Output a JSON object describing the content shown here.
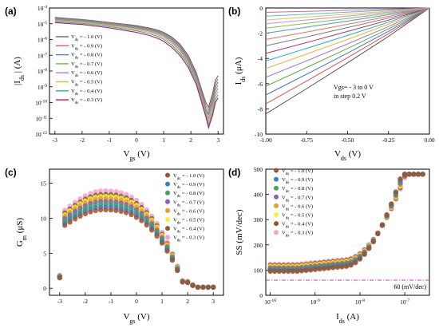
{
  "colors": [
    "#666666",
    "#e06666",
    "#4a86d8",
    "#7cb342",
    "#b07cc9",
    "#e8b230",
    "#2ab0c0",
    "#c2185b"
  ],
  "scatter_colors": [
    "#a0522d",
    "#3a7bd5",
    "#3aa856",
    "#8e5bb5",
    "#e8a020",
    "#f2f230",
    "#8b5a2b",
    "#f4a0d0"
  ],
  "chart_data": [
    {
      "id": "a",
      "panel_label": "(a)",
      "type": "line",
      "xlabel_main": "V",
      "xlabel_sub": "gs",
      "xlabel_unit": "(V)",
      "ylabel_main": "|I",
      "ylabel_sub": "ds",
      "ylabel_unit": "| (A)",
      "xlim": [
        -3.2,
        3.2
      ],
      "ylim_log10": [
        -12,
        -4
      ],
      "y_scale": "log",
      "xticks": [
        -3,
        -2,
        -1,
        0,
        1,
        2,
        3
      ],
      "yticks_exp": [
        -12,
        -11,
        -10,
        -9,
        -8,
        -7,
        -6,
        -5,
        -4
      ],
      "ytick_base": "10",
      "x": [
        -3.0,
        -2.5,
        -2.0,
        -1.5,
        -1.0,
        -0.5,
        0.0,
        0.5,
        0.8,
        1.0,
        1.3,
        1.6,
        1.9,
        2.2,
        2.4,
        2.55,
        2.65,
        2.8,
        2.9,
        3.0
      ],
      "series": [
        {
          "name": "V",
          "sub": "ds",
          "suffix": " = - 1.0 (V)",
          "log10_values": [
            -4.6,
            -4.67,
            -4.73,
            -4.82,
            -4.92,
            -5.02,
            -5.12,
            -5.28,
            -5.42,
            -5.55,
            -5.85,
            -6.3,
            -7.0,
            -8.1,
            -9.2,
            -10.0,
            -10.3,
            -9.4,
            -8.6,
            -8.3
          ]
        },
        {
          "name": "V",
          "sub": "ds",
          "suffix": " = - 0.9 (V)",
          "log10_values": [
            -4.63,
            -4.7,
            -4.76,
            -4.85,
            -4.95,
            -5.05,
            -5.16,
            -5.32,
            -5.47,
            -5.6,
            -5.92,
            -6.38,
            -7.1,
            -8.2,
            -9.35,
            -10.2,
            -10.5,
            -9.6,
            -8.8,
            -8.5
          ]
        },
        {
          "name": "V",
          "sub": "ds",
          "suffix": " = - 0.8 (V)",
          "log10_values": [
            -4.66,
            -4.73,
            -4.79,
            -4.88,
            -4.98,
            -5.09,
            -5.2,
            -5.37,
            -5.52,
            -5.66,
            -5.99,
            -6.46,
            -7.2,
            -8.3,
            -9.5,
            -10.4,
            -10.7,
            -9.8,
            -9.0,
            -8.7
          ]
        },
        {
          "name": "V",
          "sub": "ds",
          "suffix": " = - 0.7 (V)",
          "log10_values": [
            -4.7,
            -4.77,
            -4.83,
            -4.92,
            -5.02,
            -5.13,
            -5.25,
            -5.42,
            -5.58,
            -5.73,
            -6.07,
            -6.55,
            -7.3,
            -8.4,
            -9.6,
            -10.5,
            -10.8,
            -10.0,
            -9.2,
            -8.9
          ]
        },
        {
          "name": "V",
          "sub": "ds",
          "suffix": " = - 0.6 (V)",
          "log10_values": [
            -4.74,
            -4.81,
            -4.87,
            -4.96,
            -5.07,
            -5.18,
            -5.3,
            -5.48,
            -5.65,
            -5.8,
            -6.15,
            -6.65,
            -7.4,
            -8.5,
            -9.7,
            -10.6,
            -11.0,
            -10.2,
            -9.4,
            -9.1
          ]
        },
        {
          "name": "V",
          "sub": "ds",
          "suffix": " = - 0.5 (V)",
          "log10_values": [
            -4.79,
            -4.86,
            -4.92,
            -5.01,
            -5.12,
            -5.24,
            -5.37,
            -5.55,
            -5.73,
            -5.89,
            -6.25,
            -6.76,
            -7.5,
            -8.6,
            -9.8,
            -10.7,
            -11.2,
            -10.4,
            -9.6,
            -9.3
          ]
        },
        {
          "name": "V",
          "sub": "ds",
          "suffix": " = - 0.4 (V)",
          "log10_values": [
            -4.85,
            -4.92,
            -4.98,
            -5.07,
            -5.18,
            -5.31,
            -5.45,
            -5.64,
            -5.82,
            -5.99,
            -6.36,
            -6.88,
            -7.6,
            -8.7,
            -9.9,
            -10.8,
            -11.4,
            -10.6,
            -9.8,
            -9.5
          ]
        },
        {
          "name": "V",
          "sub": "ds",
          "suffix": " = - 0.3 (V)",
          "log10_values": [
            -4.92,
            -4.99,
            -5.05,
            -5.15,
            -5.26,
            -5.4,
            -5.55,
            -5.75,
            -5.94,
            -6.12,
            -6.5,
            -7.02,
            -7.75,
            -8.85,
            -10.0,
            -10.9,
            -11.6,
            -10.8,
            -10.0,
            -9.7
          ]
        }
      ]
    },
    {
      "id": "b",
      "panel_label": "(b)",
      "type": "line",
      "xlabel_main": "V",
      "xlabel_sub": "ds",
      "xlabel_unit": "(V)",
      "ylabel_main": "I",
      "ylabel_sub": "ds",
      "ylabel_unit": "(μA)",
      "xlim": [
        -1.0,
        0.0
      ],
      "ylim": [
        -10,
        0
      ],
      "xticks": [
        -1.0,
        -0.75,
        -0.5,
        -0.25,
        0.0
      ],
      "xtick_labels": [
        "-1.00",
        "-0.75",
        "-0.50",
        "-0.25",
        "0.00"
      ],
      "yticks": [
        -10,
        -8,
        -6,
        -4,
        -2,
        0
      ],
      "annotation_lines": [
        "Vgs= - 3 to 0 V",
        "in step 0.2 V"
      ],
      "x": [
        -1.0,
        -0.75,
        -0.5,
        -0.25,
        0.0
      ],
      "end_values": [
        -8.4,
        -7.6,
        -6.9,
        -6.2,
        -5.5,
        -4.8,
        -4.2,
        -3.6,
        -3.0,
        -2.5,
        -2.0,
        -1.6,
        -1.25,
        -0.95,
        -0.65,
        -0.35
      ]
    },
    {
      "id": "c",
      "panel_label": "(c)",
      "type": "scatter",
      "xlabel_main": "V",
      "xlabel_sub": "gs",
      "xlabel_unit": "(V)",
      "ylabel_main": "G",
      "ylabel_sub": "m",
      "ylabel_unit": "(μS)",
      "xlim": [
        -3.4,
        3.4
      ],
      "ylim": [
        -1,
        17
      ],
      "xticks": [
        -3,
        -2,
        -1,
        0,
        1,
        2,
        3
      ],
      "yticks": [
        0,
        5,
        10,
        15
      ],
      "x": [
        -3.0,
        -2.8,
        -2.6,
        -2.4,
        -2.2,
        -2.0,
        -1.8,
        -1.6,
        -1.4,
        -1.2,
        -1.0,
        -0.8,
        -0.6,
        -0.4,
        -0.2,
        0.0,
        0.2,
        0.4,
        0.6,
        0.8,
        1.0,
        1.2,
        1.4,
        1.6,
        1.8,
        2.0,
        2.2,
        2.4,
        2.6,
        2.8,
        3.0
      ],
      "peaks": [
        11.2,
        11.6,
        12.0,
        12.4,
        12.8,
        13.1,
        13.4,
        13.9
      ],
      "series": [
        {
          "name": "V",
          "sub": "ds",
          "suffix": " = - 1.0 (V)"
        },
        {
          "name": "V",
          "sub": "ds",
          "suffix": " = - 0.9 (V)"
        },
        {
          "name": "V",
          "sub": "ds",
          "suffix": " = - 0.8 (V)"
        },
        {
          "name": "V",
          "sub": "ds",
          "suffix": " = - 0.7 (V)"
        },
        {
          "name": "V",
          "sub": "ds",
          "suffix": " = - 0.6 (V)"
        },
        {
          "name": "V",
          "sub": "ds",
          "suffix": " = - 0.5 (V)"
        },
        {
          "name": "V",
          "sub": "ds",
          "suffix": " = - 0.4 (V)"
        },
        {
          "name": "V",
          "sub": "ds",
          "suffix": " = - 0.3 (V)"
        }
      ]
    },
    {
      "id": "d",
      "panel_label": "(d)",
      "type": "scatter",
      "xlabel_main": "I",
      "xlabel_sub": "ds",
      "xlabel_unit": "(A)",
      "ylabel": "SS (mV/dec)",
      "x_scale": "log",
      "xlim_log10": [
        -10.1,
        -6.45
      ],
      "ylim": [
        0,
        500
      ],
      "xticks_exp": [
        -10,
        -9,
        -8,
        -7
      ],
      "xtick_base": "10",
      "yticks": [
        0,
        100,
        200,
        300,
        400,
        500
      ],
      "reference_value": 60,
      "reference_label": "60 (mV/dec)",
      "series": [
        {
          "name": "V",
          "sub": "ds",
          "suffix": " = - 1.0 (V)"
        },
        {
          "name": "V",
          "sub": "ds",
          "suffix": " = - 0.9 (V)"
        },
        {
          "name": "V",
          "sub": "ds",
          "suffix": " = - 0.8 (V)"
        },
        {
          "name": "V",
          "sub": "ds",
          "suffix": " = - 0.7 (V)"
        },
        {
          "name": "V",
          "sub": "ds",
          "suffix": " = - 0.6 (V)"
        },
        {
          "name": "V",
          "sub": "ds",
          "suffix": " = - 0.5 (V)"
        },
        {
          "name": "V",
          "sub": "ds",
          "suffix": " = - 0.4 (V)"
        },
        {
          "name": "V",
          "sub": "ds",
          "suffix": " = - 0.3 (V)"
        }
      ]
    }
  ]
}
